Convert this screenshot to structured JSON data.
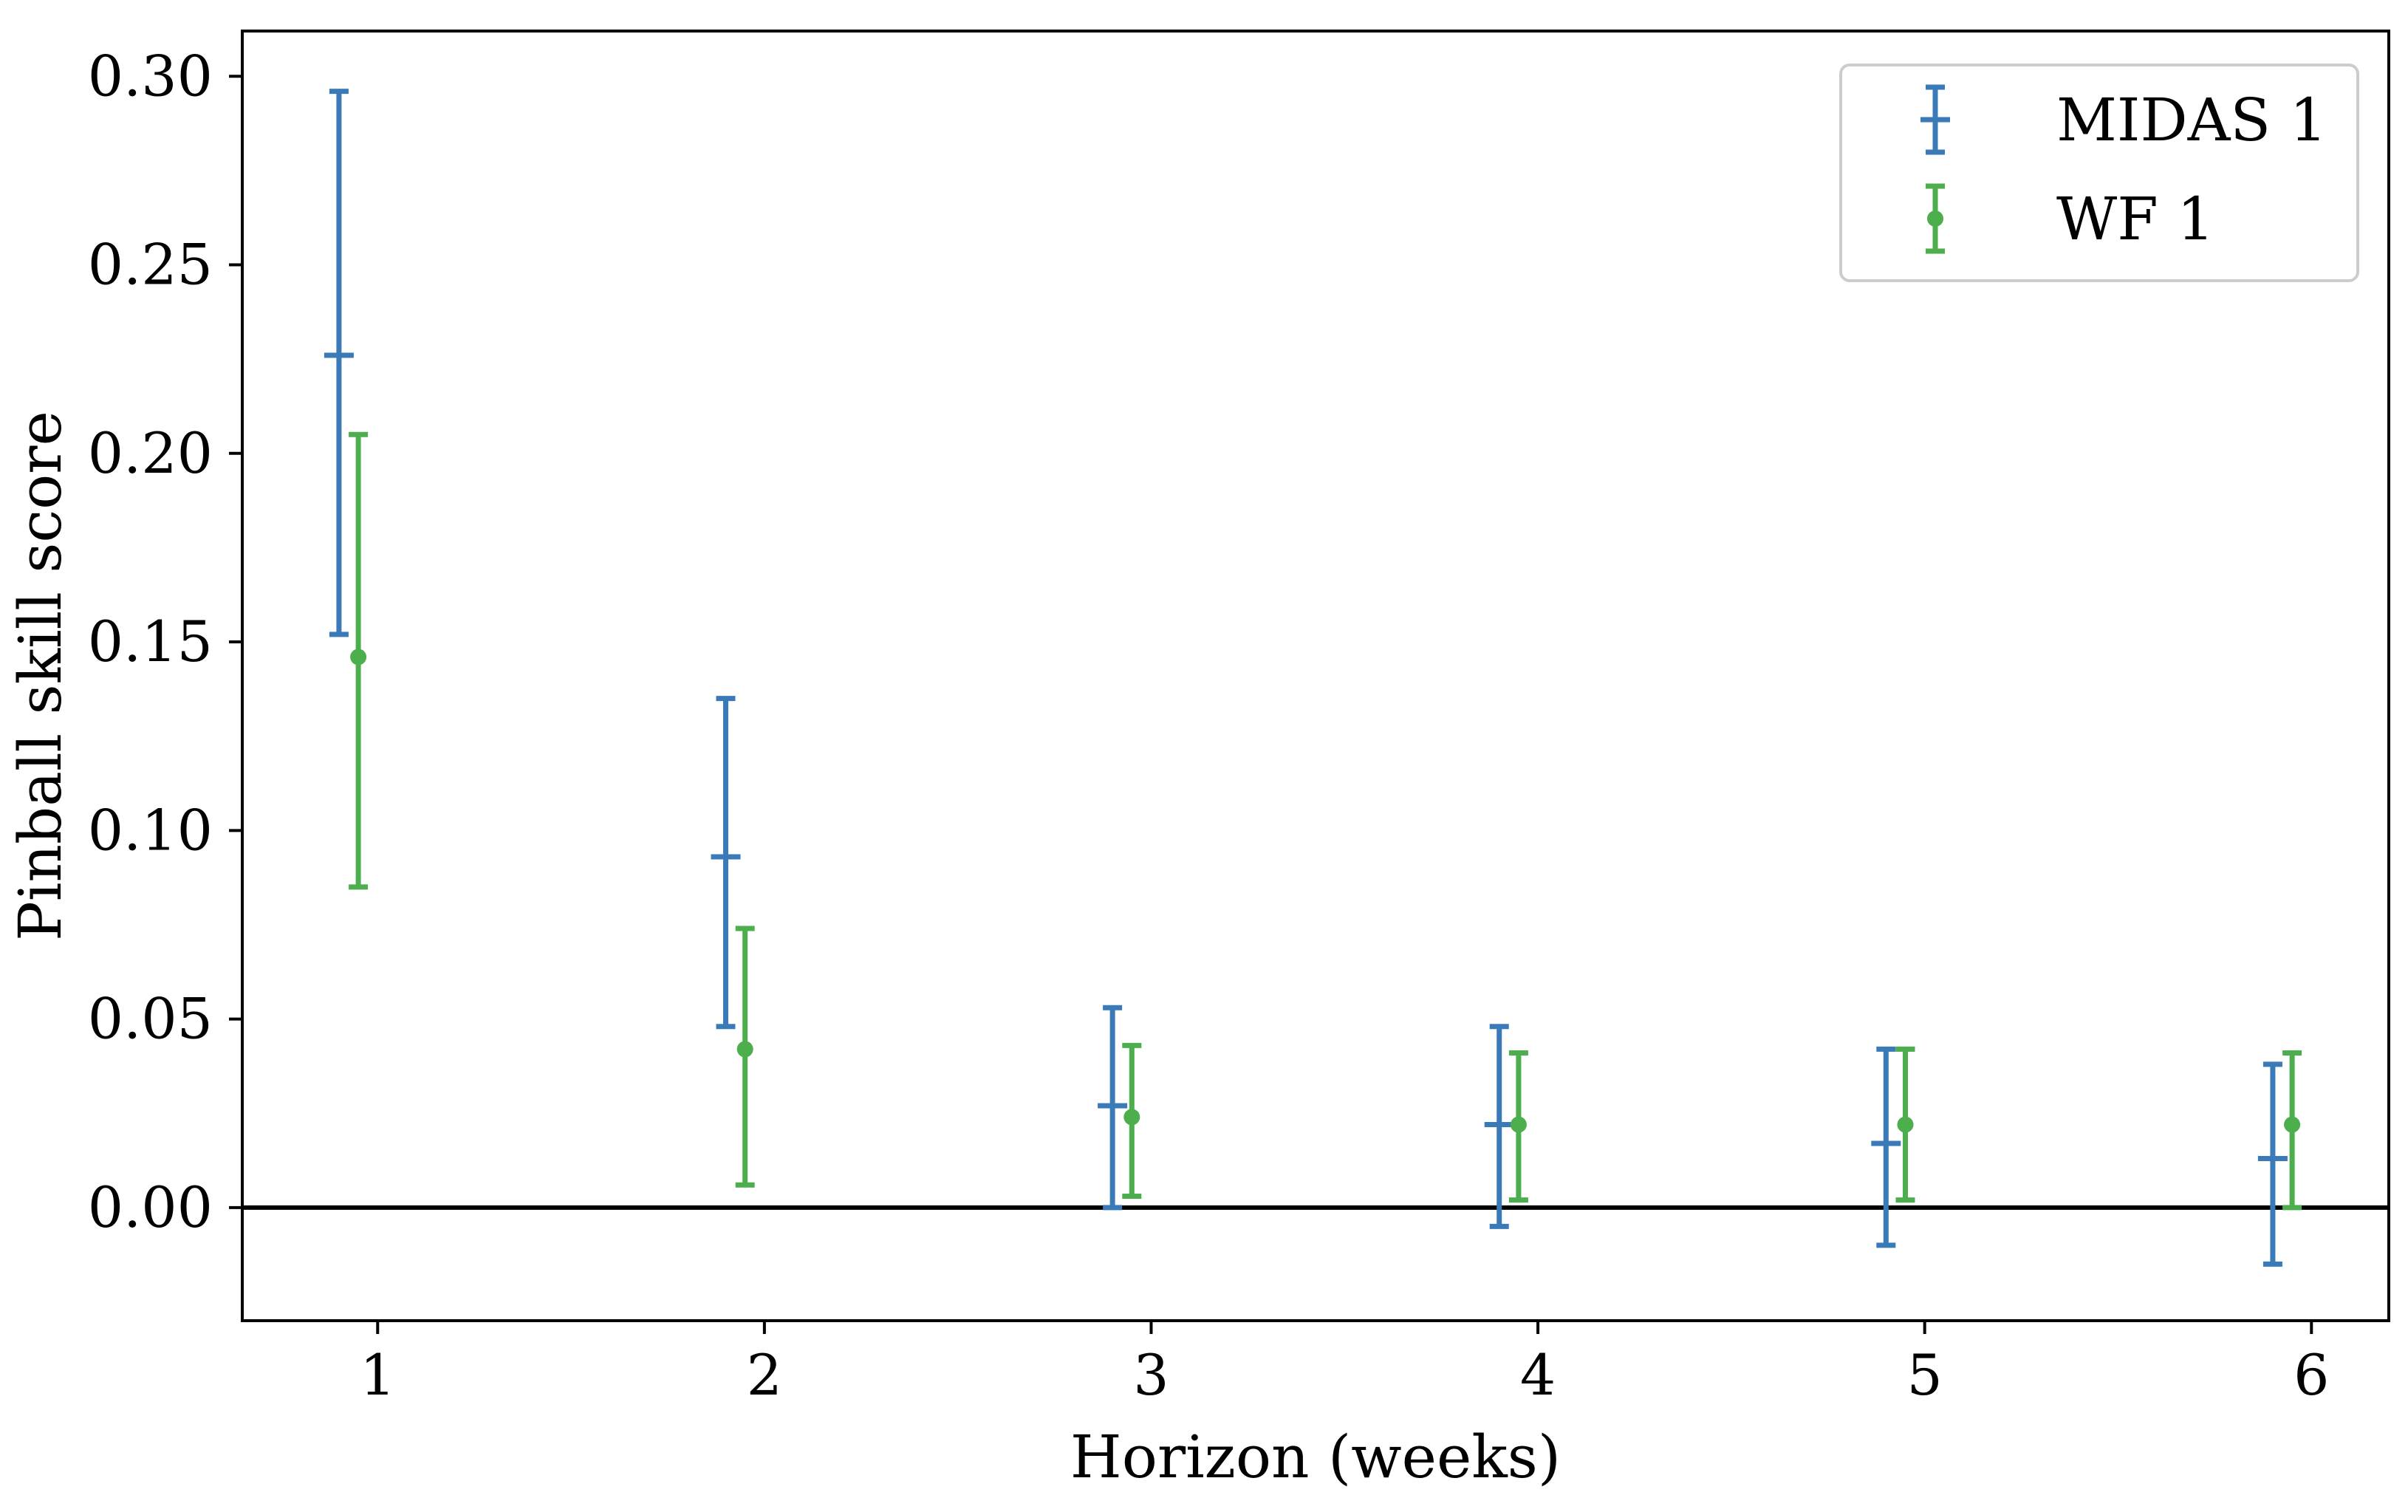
{
  "chart_data": {
    "type": "errorbar",
    "title": "",
    "xlabel": "Horizon (weeks)",
    "ylabel": "Pinball skill score",
    "xlim": [
      0.65,
      6.2
    ],
    "ylim": [
      -0.03,
      0.312
    ],
    "xticks": [
      1,
      2,
      3,
      4,
      5,
      6
    ],
    "xtick_labels": [
      "1",
      "2",
      "3",
      "4",
      "5",
      "6"
    ],
    "yticks": [
      0.0,
      0.05,
      0.1,
      0.15,
      0.2,
      0.25,
      0.3
    ],
    "ytick_labels": [
      "0.00",
      "0.05",
      "0.10",
      "0.15",
      "0.20",
      "0.25",
      "0.30"
    ],
    "reference_line_y": 0.0,
    "grid": false,
    "legend_position": "top-right",
    "series": [
      {
        "name": "MIDAS 1",
        "color": "#3a7ab8",
        "marker": "hline",
        "x_offset": -0.1,
        "x": [
          1,
          2,
          3,
          4,
          5,
          6
        ],
        "y": [
          0.226,
          0.093,
          0.027,
          0.022,
          0.017,
          0.013
        ],
        "lower": [
          0.152,
          0.048,
          0.0,
          -0.005,
          -0.01,
          -0.015
        ],
        "upper": [
          0.296,
          0.135,
          0.053,
          0.048,
          0.042,
          0.038
        ]
      },
      {
        "name": "WF 1",
        "color": "#4cae4c",
        "marker": "circle",
        "x_offset": -0.05,
        "x": [
          1,
          2,
          3,
          4,
          5,
          6
        ],
        "y": [
          0.146,
          0.042,
          0.024,
          0.022,
          0.022,
          0.022
        ],
        "lower": [
          0.085,
          0.006,
          0.003,
          0.002,
          0.002,
          0.0
        ],
        "upper": [
          0.205,
          0.074,
          0.043,
          0.041,
          0.042,
          0.041
        ]
      }
    ]
  }
}
